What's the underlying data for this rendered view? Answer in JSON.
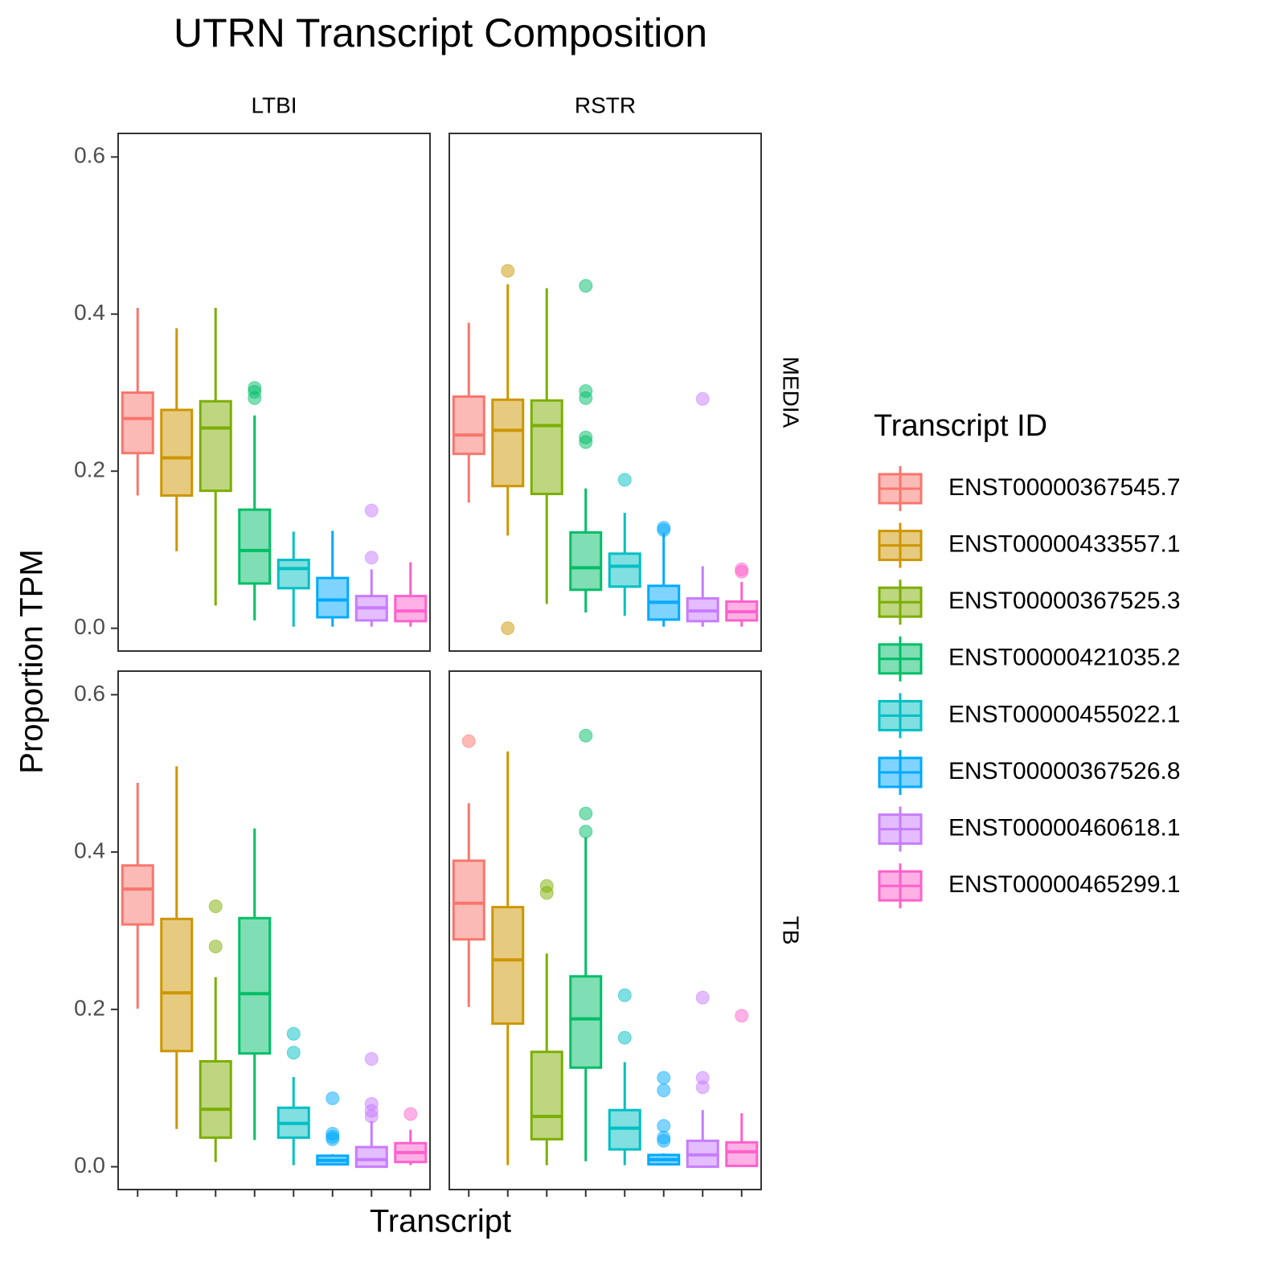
{
  "chart_data": {
    "type": "box",
    "title": "UTRN Transcript Composition",
    "xlabel": "Transcript",
    "ylabel": "Proportion TPM",
    "legend_title": "Transcript ID",
    "columns": [
      "LTBI",
      "RSTR"
    ],
    "rows": [
      "MEDIA",
      "TB"
    ],
    "categories": [
      null,
      null,
      null,
      null,
      null,
      null,
      null,
      null
    ],
    "series": [
      {
        "name": "ENST00000367545.7",
        "color": "#F8766D"
      },
      {
        "name": "ENST00000433557.1",
        "color": "#CD9600"
      },
      {
        "name": "ENST00000367525.3",
        "color": "#7CAE00"
      },
      {
        "name": "ENST00000421035.2",
        "color": "#00BE67"
      },
      {
        "name": "ENST00000455022.1",
        "color": "#00BFC4"
      },
      {
        "name": "ENST00000367526.8",
        "color": "#00A9FF"
      },
      {
        "name": "ENST00000460618.1",
        "color": "#C77CFF"
      },
      {
        "name": "ENST00000465299.1",
        "color": "#FF61CC"
      }
    ],
    "ylim": [
      -0.029,
      0.63
    ],
    "yticks": [
      {
        "value": 0,
        "label": "0.0"
      },
      {
        "value": 0.2,
        "label": "0.2"
      },
      {
        "value": 0.4,
        "label": "0.4"
      },
      {
        "value": 0.6,
        "label": "0.6"
      }
    ],
    "panels": [
      [
        [
          {
            "min": 0.169,
            "q1": 0.223,
            "median": 0.267,
            "q3": 0.3,
            "max": 0.408,
            "outliers": []
          },
          {
            "min": 0.098,
            "q1": 0.169,
            "median": 0.217,
            "q3": 0.278,
            "max": 0.382,
            "outliers": []
          },
          {
            "min": 0.029,
            "q1": 0.175,
            "median": 0.255,
            "q3": 0.289,
            "max": 0.408,
            "outliers": []
          },
          {
            "min": 0.01,
            "q1": 0.057,
            "median": 0.099,
            "q3": 0.151,
            "max": 0.271,
            "outliers": [
              0.306,
              0.301,
              0.293
            ]
          },
          {
            "min": 0.002,
            "q1": 0.051,
            "median": 0.076,
            "q3": 0.087,
            "max": 0.123,
            "outliers": []
          },
          {
            "min": 0.002,
            "q1": 0.014,
            "median": 0.036,
            "q3": 0.064,
            "max": 0.124,
            "outliers": []
          },
          {
            "min": 0.002,
            "q1": 0.01,
            "median": 0.026,
            "q3": 0.041,
            "max": 0.075,
            "outliers": [
              0.15,
              0.09
            ]
          },
          {
            "min": 0.002,
            "q1": 0.009,
            "median": 0.022,
            "q3": 0.041,
            "max": 0.084,
            "outliers": []
          }
        ],
        [
          {
            "min": 0.16,
            "q1": 0.222,
            "median": 0.246,
            "q3": 0.295,
            "max": 0.389,
            "outliers": []
          },
          {
            "min": 0.118,
            "q1": 0.181,
            "median": 0.252,
            "q3": 0.291,
            "max": 0.438,
            "outliers": [
              0.455,
              0.0
            ]
          },
          {
            "min": 0.031,
            "q1": 0.171,
            "median": 0.258,
            "q3": 0.29,
            "max": 0.433,
            "outliers": []
          },
          {
            "min": 0.02,
            "q1": 0.049,
            "median": 0.077,
            "q3": 0.122,
            "max": 0.178,
            "outliers": [
              0.436,
              0.302,
              0.293,
              0.243,
              0.237
            ]
          },
          {
            "min": 0.016,
            "q1": 0.053,
            "median": 0.079,
            "q3": 0.095,
            "max": 0.147,
            "outliers": [
              0.189
            ]
          },
          {
            "min": 0.002,
            "q1": 0.011,
            "median": 0.033,
            "q3": 0.054,
            "max": 0.121,
            "outliers": [
              0.128,
              0.125
            ]
          },
          {
            "min": 0.002,
            "q1": 0.009,
            "median": 0.022,
            "q3": 0.038,
            "max": 0.079,
            "outliers": [
              0.292
            ]
          },
          {
            "min": 0.002,
            "q1": 0.01,
            "median": 0.021,
            "q3": 0.034,
            "max": 0.059,
            "outliers": [
              0.075,
              0.072
            ]
          }
        ]
      ],
      [
        [
          {
            "min": 0.201,
            "q1": 0.308,
            "median": 0.353,
            "q3": 0.383,
            "max": 0.488,
            "outliers": []
          },
          {
            "min": 0.048,
            "q1": 0.147,
            "median": 0.221,
            "q3": 0.315,
            "max": 0.509,
            "outliers": []
          },
          {
            "min": 0.006,
            "q1": 0.037,
            "median": 0.073,
            "q3": 0.134,
            "max": 0.241,
            "outliers": [
              0.331,
              0.28
            ]
          },
          {
            "min": 0.034,
            "q1": 0.144,
            "median": 0.22,
            "q3": 0.316,
            "max": 0.43,
            "outliers": []
          },
          {
            "min": 0.002,
            "q1": 0.037,
            "median": 0.055,
            "q3": 0.075,
            "max": 0.114,
            "outliers": [
              0.169,
              0.145
            ]
          },
          {
            "min": 0.002,
            "q1": 0.003,
            "median": 0.008,
            "q3": 0.014,
            "max": 0.016,
            "outliers": [
              0.087,
              0.042,
              0.038,
              0.035
            ]
          },
          {
            "min": 0.0,
            "q1": 0.0,
            "median": 0.009,
            "q3": 0.025,
            "max": 0.058,
            "outliers": [
              0.137,
              0.08,
              0.071,
              0.064
            ]
          },
          {
            "min": 0.002,
            "q1": 0.006,
            "median": 0.018,
            "q3": 0.03,
            "max": 0.047,
            "outliers": [
              0.067
            ]
          }
        ],
        [
          {
            "min": 0.203,
            "q1": 0.289,
            "median": 0.335,
            "q3": 0.389,
            "max": 0.462,
            "outliers": [
              0.541
            ]
          },
          {
            "min": 0.002,
            "q1": 0.182,
            "median": 0.263,
            "q3": 0.33,
            "max": 0.528,
            "outliers": []
          },
          {
            "min": 0.002,
            "q1": 0.035,
            "median": 0.064,
            "q3": 0.146,
            "max": 0.271,
            "outliers": [
              0.357,
              0.348
            ]
          },
          {
            "min": 0.007,
            "q1": 0.126,
            "median": 0.188,
            "q3": 0.242,
            "max": 0.419,
            "outliers": [
              0.548,
              0.449,
              0.426
            ]
          },
          {
            "min": 0.002,
            "q1": 0.022,
            "median": 0.049,
            "q3": 0.072,
            "max": 0.133,
            "outliers": [
              0.218,
              0.164
            ]
          },
          {
            "min": 0.002,
            "q1": 0.003,
            "median": 0.009,
            "q3": 0.015,
            "max": 0.017,
            "outliers": [
              0.113,
              0.097,
              0.052,
              0.037,
              0.033
            ]
          },
          {
            "min": 0.0,
            "q1": 0.0,
            "median": 0.015,
            "q3": 0.033,
            "max": 0.072,
            "outliers": [
              0.215,
              0.113,
              0.101
            ]
          },
          {
            "min": 0.0,
            "q1": 0.001,
            "median": 0.019,
            "q3": 0.031,
            "max": 0.068,
            "outliers": [
              0.192
            ]
          }
        ]
      ]
    ]
  }
}
